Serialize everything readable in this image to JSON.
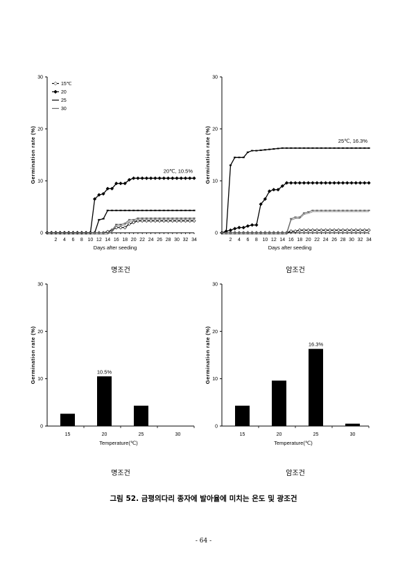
{
  "page": {
    "figure_title": "그림 52. 금평의다리 종자에 발아율에 미치는 온도 및 광조건",
    "page_number": "- 64 -"
  },
  "chart_data": [
    {
      "type": "line",
      "caption": "명조건",
      "xlabel": "Days after seeding",
      "ylabel": "Germination rate (%)",
      "ylim": [
        0,
        30
      ],
      "yticks": [
        "0",
        "10",
        "20",
        "30"
      ],
      "xlim": [
        0,
        34
      ],
      "xticks": [
        "2",
        "4",
        "6",
        "8",
        "10",
        "12",
        "14",
        "16",
        "18",
        "20",
        "22",
        "24",
        "26",
        "28",
        "30",
        "32",
        "34"
      ],
      "legend": [
        "15℃",
        "20",
        "25",
        "30"
      ],
      "legend_position": "top-left",
      "annotation": {
        "text": "20℃, 10.5%",
        "series": "20"
      },
      "series": [
        {
          "name": "15℃",
          "marker": "diamond",
          "points": [
            [
              0,
              0
            ],
            [
              11,
              0
            ],
            [
              12,
              0
            ],
            [
              13,
              0
            ],
            [
              14,
              0.2
            ],
            [
              15,
              0.5
            ],
            [
              16,
              1.0
            ],
            [
              17,
              1.0
            ],
            [
              18,
              1.0
            ],
            [
              19,
              1.7
            ],
            [
              20,
              2.0
            ],
            [
              21,
              2.3
            ],
            [
              22,
              2.3
            ],
            [
              34,
              2.3
            ]
          ]
        },
        {
          "name": "20",
          "marker": "diamond",
          "points": [
            [
              0,
              0
            ],
            [
              10,
              0
            ],
            [
              11,
              6.5
            ],
            [
              12,
              7.3
            ],
            [
              13,
              7.5
            ],
            [
              14,
              8.5
            ],
            [
              15,
              8.5
            ],
            [
              16,
              9.5
            ],
            [
              17,
              9.5
            ],
            [
              18,
              9.5
            ],
            [
              19,
              10.2
            ],
            [
              20,
              10.5
            ],
            [
              34,
              10.5
            ]
          ]
        },
        {
          "name": "25",
          "marker": "dash",
          "points": [
            [
              0,
              0
            ],
            [
              11,
              0
            ],
            [
              12,
              2.5
            ],
            [
              13,
              2.7
            ],
            [
              14,
              4.3
            ],
            [
              15,
              4.3
            ],
            [
              34,
              4.3
            ]
          ]
        },
        {
          "name": "30",
          "marker": "dash",
          "points": [
            [
              0,
              0
            ],
            [
              14,
              0
            ],
            [
              15,
              0.5
            ],
            [
              16,
              1.6
            ],
            [
              17,
              1.6
            ],
            [
              18,
              1.8
            ],
            [
              19,
              2.5
            ],
            [
              20,
              2.5
            ],
            [
              21,
              2.8
            ],
            [
              22,
              2.8
            ],
            [
              34,
              2.8
            ]
          ]
        }
      ]
    },
    {
      "type": "line",
      "caption": "암조건",
      "xlabel": "Days after seeding",
      "ylabel": "Germination rate (%)",
      "ylim": [
        0,
        30
      ],
      "yticks": [
        "0",
        "10",
        "20",
        "30"
      ],
      "xlim": [
        0,
        34
      ],
      "xticks": [
        "2",
        "4",
        "6",
        "8",
        "10",
        "12",
        "14",
        "16",
        "18",
        "20",
        "22",
        "24",
        "26",
        "28",
        "30",
        "32",
        "34"
      ],
      "annotation": {
        "text": "25℃, 16.3%",
        "series": "25"
      },
      "series": [
        {
          "name": "15℃",
          "marker": "diamond",
          "points": [
            [
              0,
              0
            ],
            [
              15,
              0
            ],
            [
              16,
              0.3
            ],
            [
              17,
              0.3
            ],
            [
              18,
              0.5
            ],
            [
              34,
              0.5
            ]
          ]
        },
        {
          "name": "20",
          "marker": "diamond",
          "points": [
            [
              0,
              0
            ],
            [
              1,
              0.3
            ],
            [
              2,
              0.5
            ],
            [
              3,
              0.8
            ],
            [
              4,
              1.0
            ],
            [
              5,
              1.0
            ],
            [
              6,
              1.3
            ],
            [
              7,
              1.5
            ],
            [
              8,
              1.5
            ],
            [
              9,
              5.5
            ],
            [
              10,
              6.5
            ],
            [
              11,
              8.0
            ],
            [
              12,
              8.3
            ],
            [
              13,
              8.3
            ],
            [
              14,
              9.0
            ],
            [
              15,
              9.6
            ],
            [
              34,
              9.6
            ]
          ]
        },
        {
          "name": "25",
          "marker": "dash",
          "points": [
            [
              0,
              0
            ],
            [
              1,
              0
            ],
            [
              2,
              13.0
            ],
            [
              3,
              14.5
            ],
            [
              4,
              14.5
            ],
            [
              5,
              14.5
            ],
            [
              6,
              15.5
            ],
            [
              7,
              15.8
            ],
            [
              8,
              15.8
            ],
            [
              14,
              16.3
            ],
            [
              34,
              16.3
            ]
          ]
        },
        {
          "name": "30",
          "marker": "dash",
          "points": [
            [
              0,
              0
            ],
            [
              15,
              0
            ],
            [
              16,
              2.7
            ],
            [
              17,
              3.0
            ],
            [
              18,
              3.0
            ],
            [
              19,
              3.8
            ],
            [
              20,
              4.0
            ],
            [
              21,
              4.3
            ],
            [
              34,
              4.3
            ]
          ]
        }
      ]
    },
    {
      "type": "bar",
      "caption": "명조건",
      "xlabel": "Temperature(℃)",
      "ylabel": "Germination rate (%)",
      "ylim": [
        0,
        30
      ],
      "yticks": [
        "0",
        "10",
        "20",
        "30"
      ],
      "categories": [
        "15",
        "20",
        "25",
        "30"
      ],
      "values": [
        2.6,
        10.5,
        4.3,
        0
      ],
      "data_labels": [
        null,
        "10.5%",
        null,
        null
      ]
    },
    {
      "type": "bar",
      "caption": "암조건",
      "xlabel": "Temperature(℃)",
      "ylabel": "Germination rate (%)",
      "ylim": [
        0,
        30
      ],
      "yticks": [
        "0",
        "10",
        "20",
        "30"
      ],
      "categories": [
        "15",
        "20",
        "25",
        "30"
      ],
      "values": [
        4.3,
        9.6,
        16.3,
        0.5
      ],
      "data_labels": [
        null,
        null,
        "16.3%",
        null
      ]
    }
  ]
}
